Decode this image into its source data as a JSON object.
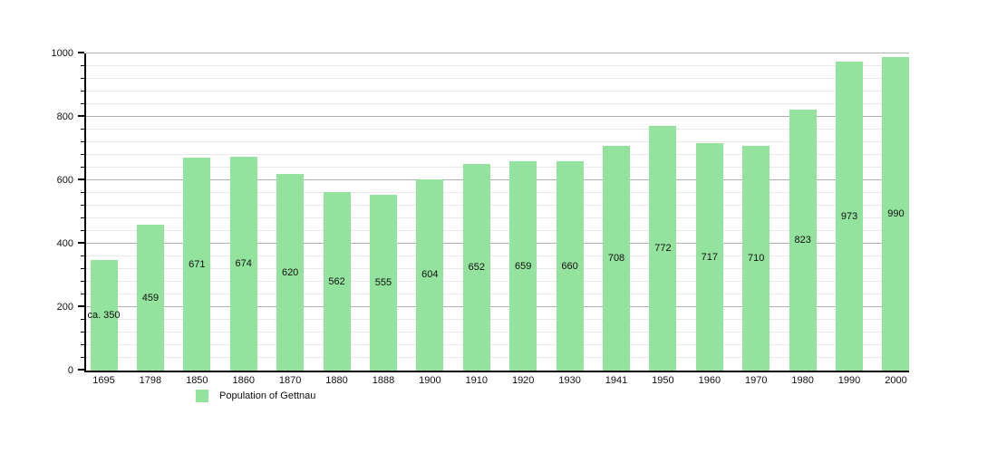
{
  "chart_data": {
    "type": "bar",
    "title": "",
    "categories": [
      "1695",
      "1798",
      "1850",
      "1860",
      "1870",
      "1880",
      "1888",
      "1900",
      "1910",
      "1920",
      "1930",
      "1941",
      "1950",
      "1960",
      "1970",
      "1980",
      "1990",
      "2000"
    ],
    "series": [
      {
        "name": "Population of Gettnau",
        "values": [
          350,
          459,
          671,
          674,
          620,
          562,
          555,
          604,
          652,
          659,
          660,
          708,
          772,
          717,
          710,
          823,
          973,
          990
        ],
        "display_labels": [
          "ca. 350",
          "459",
          "671",
          "674",
          "620",
          "562",
          "555",
          "604",
          "652",
          "659",
          "660",
          "708",
          "772",
          "717",
          "710",
          "823",
          "973",
          "990"
        ]
      }
    ],
    "xlabel": "",
    "ylabel": "",
    "ylim": [
      0,
      1000
    ],
    "yticks": [
      0,
      200,
      400,
      600,
      800,
      1000
    ],
    "minor_grid_step": 40,
    "grid": true,
    "legend_position": "bottom-left",
    "legend_label": "Population of Gettnau",
    "colors": {
      "bar": "#93e29d",
      "major_grid": "#b0b0b0",
      "minor_grid": "#e8e8e8",
      "axis": "#000000",
      "text": "#111111",
      "background": "#ffffff"
    }
  }
}
